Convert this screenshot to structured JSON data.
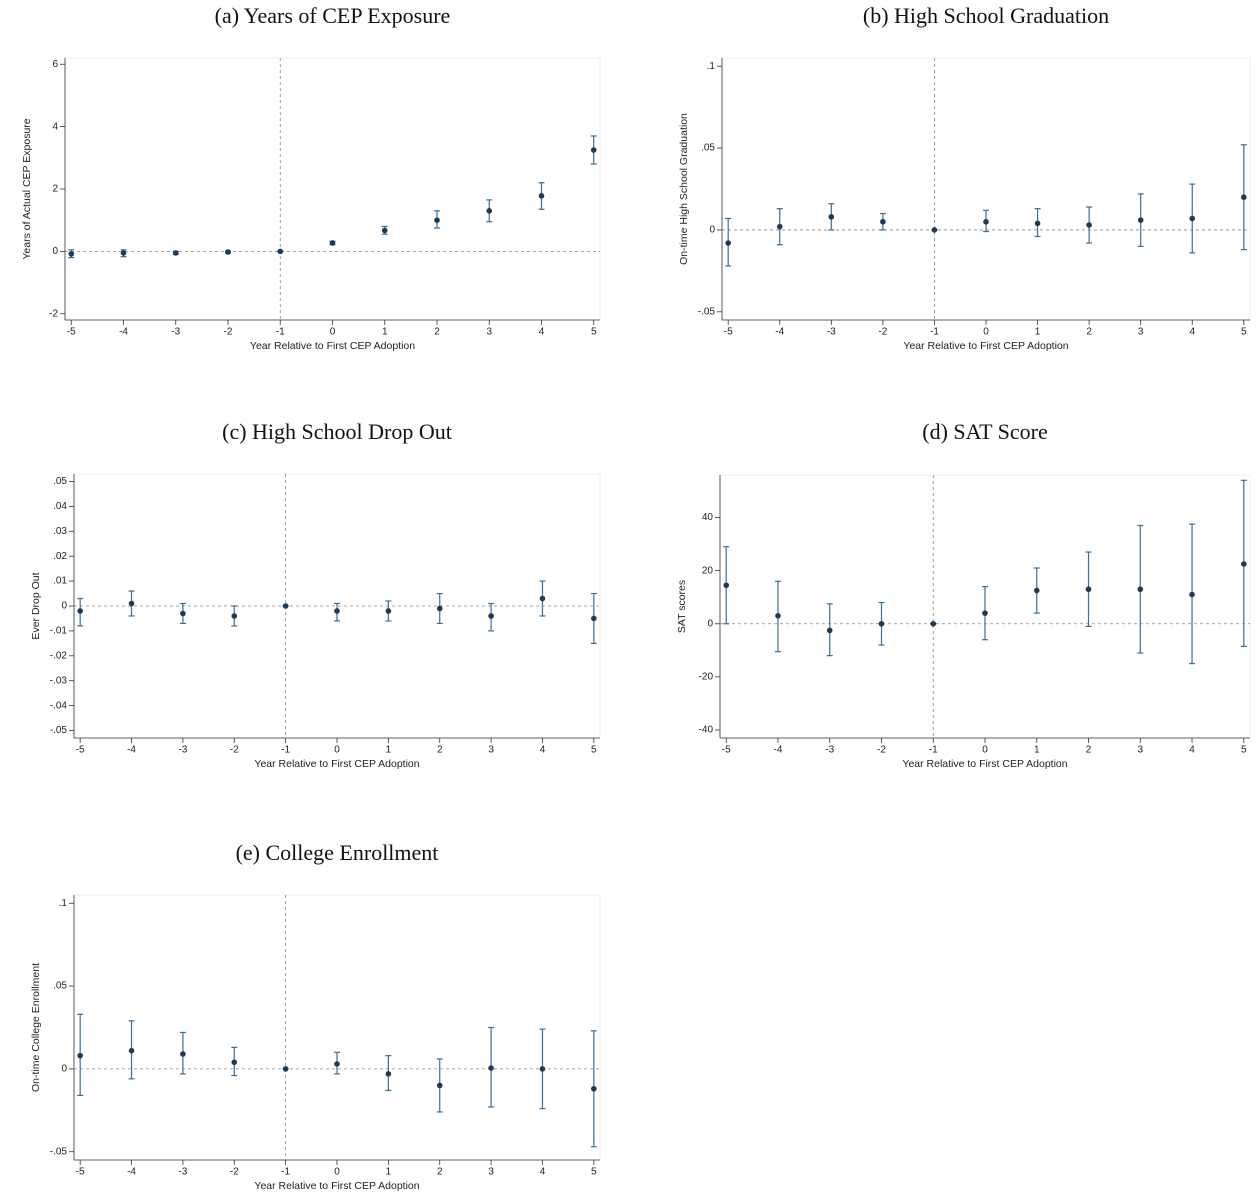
{
  "chart_data": [
    {
      "type": "errorbar",
      "title": "(a) Years of CEP Exposure",
      "x_label": "Year Relative to First CEP Adoption",
      "y_label": "Years of Actual CEP Exposure",
      "x": [
        -5,
        -4,
        -3,
        -2,
        -1,
        0,
        1,
        2,
        3,
        4,
        5
      ],
      "values": [
        -0.08,
        -0.05,
        -0.05,
        -0.02,
        0,
        0.27,
        0.67,
        1.0,
        1.3,
        1.78,
        3.25
      ],
      "ci_low": [
        -0.2,
        -0.17,
        -0.1,
        -0.05,
        0,
        0.22,
        0.55,
        0.75,
        0.95,
        1.35,
        2.8
      ],
      "ci_high": [
        0.05,
        0.05,
        0,
        0,
        0,
        0.32,
        0.8,
        1.3,
        1.65,
        2.2,
        3.7
      ],
      "xlim": [
        -5.12,
        5.12
      ],
      "xticks": [
        -5,
        -4,
        -3,
        -2,
        -1,
        0,
        1,
        2,
        3,
        4,
        5
      ],
      "ylim": [
        -2.2,
        6.2
      ],
      "yticks": [
        -2,
        0,
        2,
        4,
        6
      ],
      "hline": 0,
      "vline": -1,
      "color": "#1d3a56",
      "bar_color": "#3f6d8e"
    },
    {
      "type": "errorbar",
      "title": "(b) High School Graduation",
      "x_label": "Year Relative to First CEP Adoption",
      "y_label": "On-time High School Graduation",
      "x": [
        -5,
        -4,
        -3,
        -2,
        -1,
        0,
        1,
        2,
        3,
        4,
        5
      ],
      "values": [
        -0.008,
        0.002,
        0.008,
        0.005,
        0,
        0.005,
        0.004,
        0.003,
        0.006,
        0.007,
        0.02
      ],
      "ci_low": [
        -0.022,
        -0.009,
        0,
        0,
        0,
        -0.001,
        -0.004,
        -0.008,
        -0.01,
        -0.014,
        -0.012
      ],
      "ci_high": [
        0.007,
        0.013,
        0.016,
        0.01,
        0,
        0.012,
        0.013,
        0.014,
        0.022,
        0.028,
        0.052
      ],
      "xlim": [
        -5.12,
        5.12
      ],
      "xticks": [
        -5,
        -4,
        -3,
        -2,
        -1,
        0,
        1,
        2,
        3,
        4,
        5
      ],
      "ylim": [
        -0.055,
        0.105
      ],
      "yticks": [
        {
          "value": -0.05,
          "label": "-.05"
        },
        0,
        {
          "value": 0.05,
          "label": ".05"
        },
        {
          "value": 0.1,
          "label": ".1"
        }
      ],
      "hline": 0,
      "vline": -1,
      "color": "#1d3a56",
      "bar_color": "#3f6d8e"
    },
    {
      "type": "errorbar",
      "title": "(c) High School Drop Out",
      "x_label": "Year Relative to First CEP Adoption",
      "y_label": "Ever Drop Out",
      "x": [
        -5,
        -4,
        -3,
        -2,
        -1,
        0,
        1,
        2,
        3,
        4,
        5
      ],
      "values": [
        -0.002,
        0.001,
        -0.003,
        -0.004,
        0,
        -0.002,
        -0.002,
        -0.001,
        -0.004,
        0.003,
        -0.005
      ],
      "ci_low": [
        -0.008,
        -0.004,
        -0.007,
        -0.008,
        0,
        -0.006,
        -0.006,
        -0.007,
        -0.01,
        -0.004,
        -0.015
      ],
      "ci_high": [
        0.003,
        0.006,
        0.001,
        0,
        0,
        0.001,
        0.002,
        0.005,
        0.001,
        0.01,
        0.005
      ],
      "xlim": [
        -5.12,
        5.12
      ],
      "xticks": [
        -5,
        -4,
        -3,
        -2,
        -1,
        0,
        1,
        2,
        3,
        4,
        5
      ],
      "ylim": [
        -0.053,
        0.053
      ],
      "yticks": [
        {
          "value": -0.05,
          "label": "-.05"
        },
        {
          "value": -0.04,
          "label": "-.04"
        },
        {
          "value": -0.03,
          "label": "-.03"
        },
        {
          "value": -0.02,
          "label": "-.02"
        },
        {
          "value": -0.01,
          "label": "-.01"
        },
        0,
        {
          "value": 0.01,
          "label": ".01"
        },
        {
          "value": 0.02,
          "label": ".02"
        },
        {
          "value": 0.03,
          "label": ".03"
        },
        {
          "value": 0.04,
          "label": ".04"
        },
        {
          "value": 0.05,
          "label": ".05"
        }
      ],
      "hline": 0,
      "vline": -1,
      "color": "#1d3a56",
      "bar_color": "#3f6d8e"
    },
    {
      "type": "errorbar",
      "title": "(d) SAT Score",
      "x_label": "Year Relative to First CEP Adoption",
      "y_label": "SAT scores",
      "x": [
        -5,
        -4,
        -3,
        -2,
        -1,
        0,
        1,
        2,
        3,
        4,
        5
      ],
      "values": [
        14.5,
        3,
        -2.5,
        0,
        0,
        4,
        12.5,
        13,
        13,
        11,
        22.5
      ],
      "ci_low": [
        0,
        -10.5,
        -12,
        -8,
        0,
        -6,
        4,
        -1,
        -11,
        -15,
        -8.5
      ],
      "ci_high": [
        29,
        16,
        7.5,
        8,
        0,
        14,
        21,
        27,
        37,
        37.5,
        54
      ],
      "xlim": [
        -5.12,
        5.12
      ],
      "xticks": [
        -5,
        -4,
        -3,
        -2,
        -1,
        0,
        1,
        2,
        3,
        4,
        5
      ],
      "ylim": [
        -43,
        56
      ],
      "yticks": [
        -40,
        -20,
        0,
        20,
        40
      ],
      "hline": 0,
      "vline": -1,
      "color": "#1d3a56",
      "bar_color": "#3f6d8e"
    },
    {
      "type": "errorbar",
      "title": "(e) College Enrollment",
      "x_label": "Year Relative to First CEP Adoption",
      "y_label": "On-time College Enrollment",
      "x": [
        -5,
        -4,
        -3,
        -2,
        -1,
        0,
        1,
        2,
        3,
        4,
        5
      ],
      "values": [
        0.008,
        0.011,
        0.009,
        0.004,
        0,
        0.003,
        -0.003,
        -0.01,
        0.0005,
        0,
        -0.012
      ],
      "ci_low": [
        -0.016,
        -0.006,
        -0.003,
        -0.004,
        0,
        -0.003,
        -0.013,
        -0.026,
        -0.023,
        -0.024,
        -0.047
      ],
      "ci_high": [
        0.033,
        0.029,
        0.022,
        0.013,
        0,
        0.01,
        0.008,
        0.006,
        0.025,
        0.024,
        0.023
      ],
      "xlim": [
        -5.12,
        5.12
      ],
      "xticks": [
        -5,
        -4,
        -3,
        -2,
        -1,
        0,
        1,
        2,
        3,
        4,
        5
      ],
      "ylim": [
        -0.055,
        0.105
      ],
      "yticks": [
        {
          "value": -0.05,
          "label": "-.05"
        },
        0,
        {
          "value": 0.05,
          "label": ".05"
        },
        {
          "value": 0.1,
          "label": ".1"
        }
      ],
      "hline": 0,
      "vline": -1,
      "color": "#1d3a56",
      "bar_color": "#3f6d8e"
    }
  ]
}
